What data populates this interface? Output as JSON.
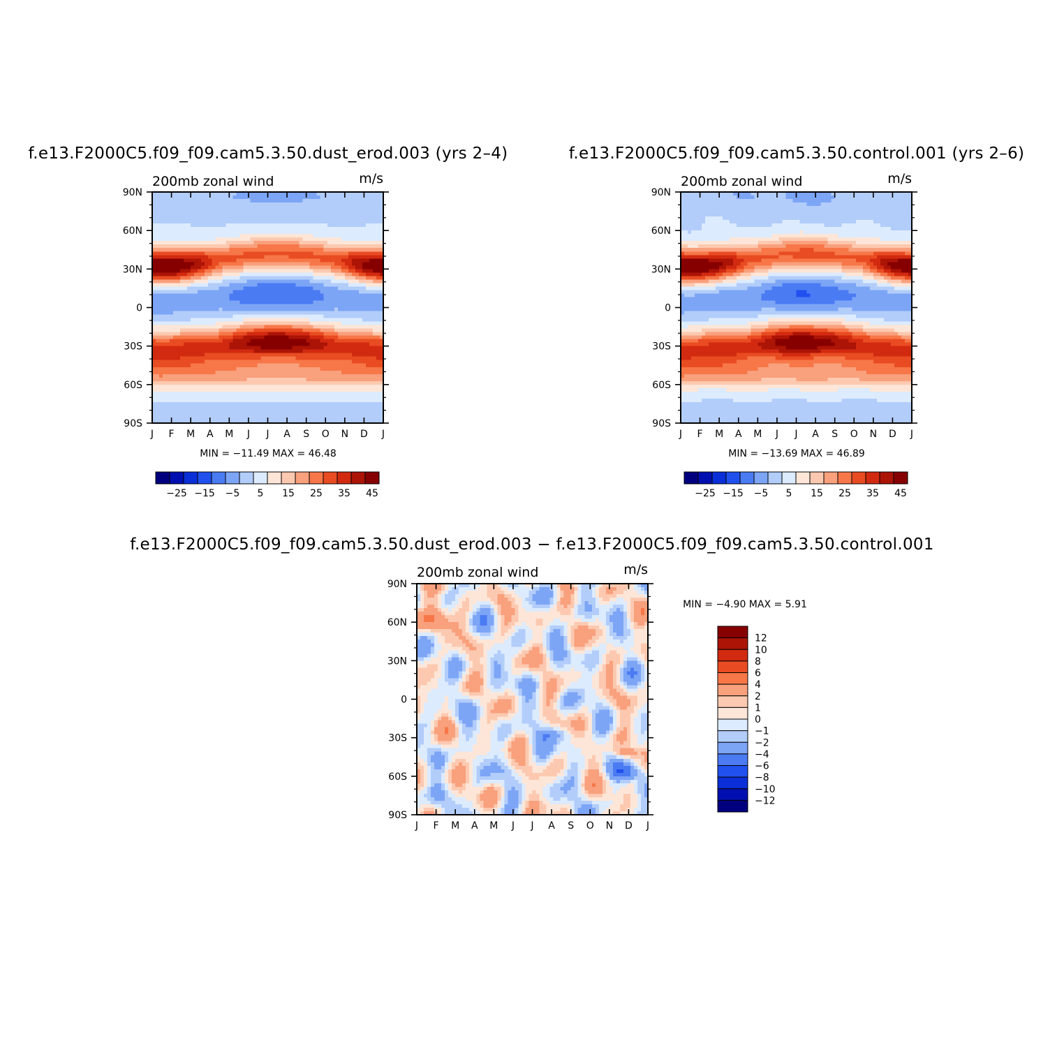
{
  "chart_data": [
    {
      "type": "heatmap",
      "title": "f.e13.F2000C5.f09_f09.cam5.3.50.dust_erod.003 (yrs 2–4)",
      "subtitle_left": "200mb  zonal  wind",
      "subtitle_right": "m/s",
      "x_tick_labels": [
        "J",
        "F",
        "M",
        "A",
        "M",
        "J",
        "J",
        "A",
        "S",
        "O",
        "N",
        "D",
        "J"
      ],
      "y_tick_labels": [
        "90N",
        "60N",
        "30N",
        "0",
        "30S",
        "60S",
        "90S"
      ],
      "x_range": [
        0,
        12
      ],
      "y_range": [
        -90,
        90
      ],
      "min_max_text": "MIN =  −11.49  MAX =    46.48",
      "min": -11.49,
      "max": 46.48,
      "colorbar": {
        "orientation": "horizontal",
        "levels": [
          -30,
          -25,
          -20,
          -15,
          -10,
          -5,
          0,
          5,
          10,
          15,
          20,
          25,
          30,
          35,
          40,
          45
        ],
        "labels": [
          "−25",
          "−15",
          "−5",
          "5",
          "15",
          "25",
          "35",
          "45"
        ]
      }
    },
    {
      "type": "heatmap",
      "title": "f.e13.F2000C5.f09_f09.cam5.3.50.control.001 (yrs 2–6)",
      "subtitle_left": "200mb  zonal  wind",
      "subtitle_right": "m/s",
      "x_tick_labels": [
        "J",
        "F",
        "M",
        "A",
        "M",
        "J",
        "J",
        "A",
        "S",
        "O",
        "N",
        "D",
        "J"
      ],
      "y_tick_labels": [
        "90N",
        "60N",
        "30N",
        "0",
        "30S",
        "60S",
        "90S"
      ],
      "x_range": [
        0,
        12
      ],
      "y_range": [
        -90,
        90
      ],
      "min_max_text": "MIN =  −13.69  MAX =    46.89",
      "min": -13.69,
      "max": 46.89,
      "colorbar": {
        "orientation": "horizontal",
        "levels": [
          -30,
          -25,
          -20,
          -15,
          -10,
          -5,
          0,
          5,
          10,
          15,
          20,
          25,
          30,
          35,
          40,
          45
        ],
        "labels": [
          "−25",
          "−15",
          "−5",
          "5",
          "15",
          "25",
          "35",
          "45"
        ]
      }
    },
    {
      "type": "heatmap",
      "title": "f.e13.F2000C5.f09_f09.cam5.3.50.dust_erod.003 − f.e13.F2000C5.f09_f09.cam5.3.50.control.001",
      "subtitle_left": "200mb  zonal  wind",
      "subtitle_right": "m/s",
      "x_tick_labels": [
        "J",
        "F",
        "M",
        "A",
        "M",
        "J",
        "J",
        "A",
        "S",
        "O",
        "N",
        "D",
        "J"
      ],
      "y_tick_labels": [
        "90N",
        "60N",
        "30N",
        "0",
        "30S",
        "60S",
        "90S"
      ],
      "x_range": [
        0,
        12
      ],
      "y_range": [
        -90,
        90
      ],
      "min_max_text": "MIN =    −4.90  MAX =     5.91",
      "min": -4.9,
      "max": 5.91,
      "colorbar": {
        "orientation": "vertical",
        "levels": [
          -12,
          -10,
          -8,
          -6,
          -4,
          -2,
          -1,
          0,
          1,
          2,
          4,
          6,
          8,
          10,
          12
        ],
        "labels": [
          "12",
          "10",
          "8",
          "6",
          "4",
          "2",
          "1",
          "0",
          "−1",
          "−2",
          "−4",
          "−6",
          "−8",
          "−10",
          "−12"
        ]
      }
    }
  ],
  "colors": {
    "diverging_16": [
      "#00007f",
      "#0010b0",
      "#0a2fd8",
      "#2050ee",
      "#4a7bf3",
      "#7da5f6",
      "#b2cdfa",
      "#dcebfe",
      "#fde6d8",
      "#fcc9b0",
      "#f9a07d",
      "#f77748",
      "#e94c22",
      "#d22a10",
      "#ac1406",
      "#870000"
    ],
    "diverging_16_diff": [
      "#00007f",
      "#0010b0",
      "#0a2fd8",
      "#2050ee",
      "#4a7bf3",
      "#7da5f6",
      "#b2cdfa",
      "#dcebfe",
      "#fde6d8",
      "#fcc9b0",
      "#f9a07d",
      "#f77748",
      "#e94c22",
      "#d22a10",
      "#ac1406",
      "#870000"
    ]
  }
}
